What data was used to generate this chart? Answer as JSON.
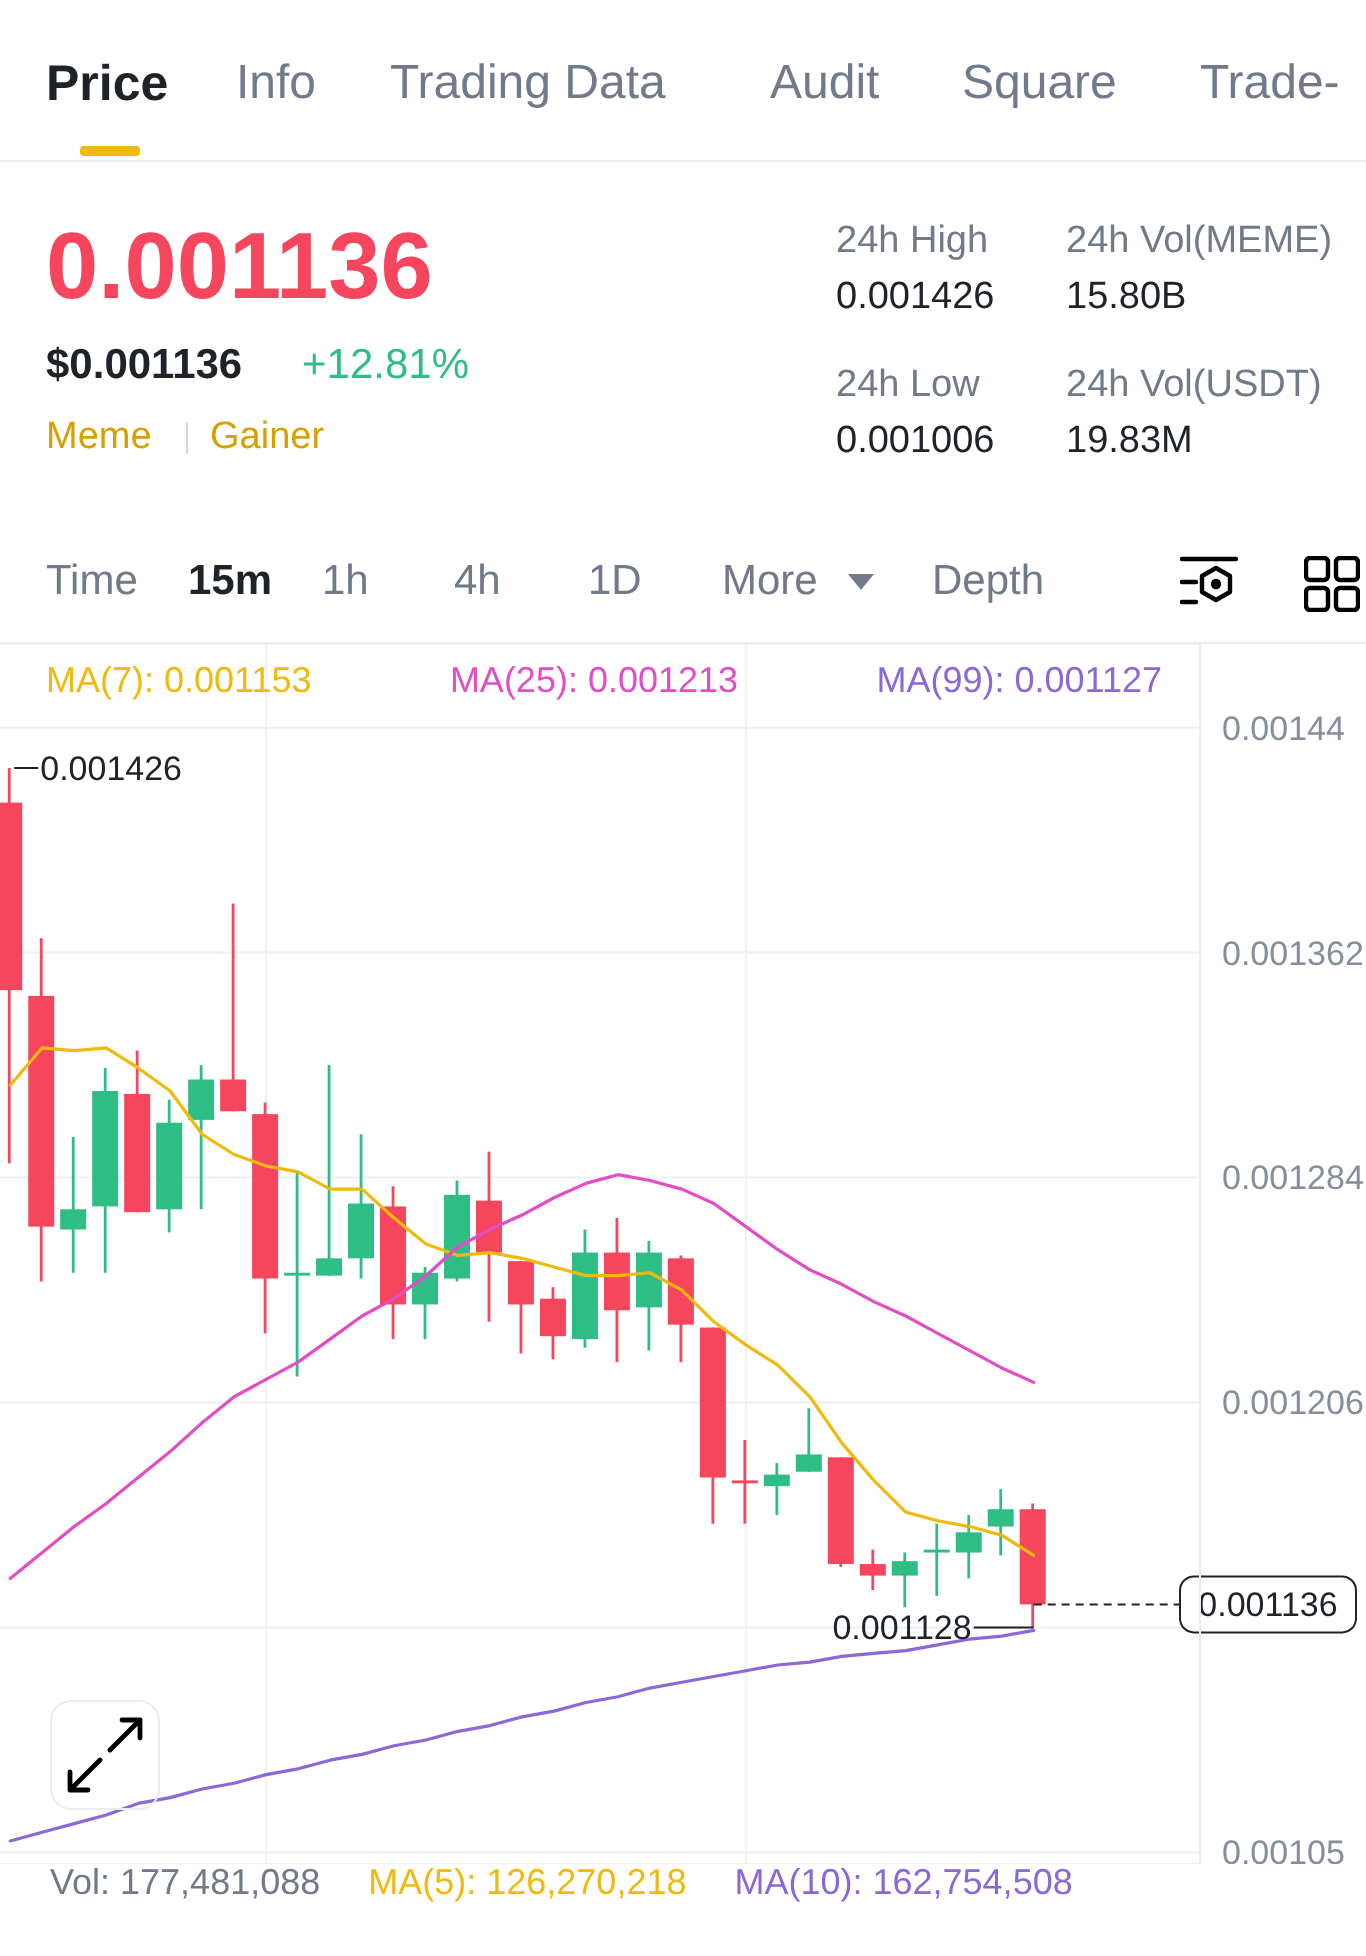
{
  "chart_data": [
    {
      "type": "other",
      "annotations": [
        "Price",
        "Info",
        "Trading Data",
        "Audit",
        "Square",
        "Trade-",
        "0.001136",
        "$0.001136",
        "+12.81%",
        "Meme",
        "Gainer",
        "24h High",
        "0.001426",
        "24h Vol(MEME)",
        "15.80B",
        "24h Low",
        "0.001006",
        "24h Vol(USDT)",
        "19.83M",
        "Time",
        "15m",
        "1h",
        "4h",
        "1D",
        "More",
        "Depth"
      ]
    },
    {
      "type": "candlestick",
      "categories": [
        null,
        null,
        null,
        null,
        null,
        null,
        null,
        null,
        null,
        null,
        null,
        null,
        null,
        null,
        null,
        null,
        null,
        null,
        null,
        null,
        null,
        null,
        null,
        null,
        null,
        null,
        null,
        null,
        null,
        null,
        null,
        null,
        null
      ],
      "ohlc": [
        [
          0.001414,
          0.001426,
          0.001289,
          0.001349
        ],
        [
          0.001347,
          0.001367,
          0.001248,
          0.001267
        ],
        [
          0.001266,
          0.001298,
          0.001251,
          0.001273
        ],
        [
          0.001274,
          0.001322,
          0.001251,
          0.001314
        ],
        [
          0.001313,
          0.001328,
          0.001272,
          0.001272
        ],
        [
          0.001273,
          0.001311,
          0.001265,
          0.001303
        ],
        [
          0.001304,
          0.001323,
          0.001273,
          0.001318
        ],
        [
          0.001318,
          0.001379,
          0.001307,
          0.001307
        ],
        [
          0.001306,
          0.00131,
          0.00123,
          0.001249
        ],
        [
          0.00125,
          0.001286,
          0.001215,
          0.001251
        ],
        [
          0.00125,
          0.001323,
          0.00125,
          0.001256
        ],
        [
          0.001256,
          0.001299,
          0.001249,
          0.001275
        ],
        [
          0.001274,
          0.001281,
          0.001228,
          0.00124
        ],
        [
          0.00124,
          0.001253,
          0.001228,
          0.001251
        ],
        [
          0.001249,
          0.001283,
          0.001248,
          0.001278
        ],
        [
          0.001276,
          0.001293,
          0.001234,
          0.001258
        ],
        [
          0.001255,
          0.001255,
          0.001223,
          0.00124
        ],
        [
          0.001242,
          0.001246,
          0.001221,
          0.001229
        ],
        [
          0.001228,
          0.001266,
          0.001225,
          0.001258
        ],
        [
          0.001258,
          0.00127,
          0.00122,
          0.001238
        ],
        [
          0.001239,
          0.001262,
          0.001224,
          0.001258
        ],
        [
          0.001256,
          0.001257,
          0.00122,
          0.001233
        ],
        [
          0.001232,
          0.001232,
          0.001164,
          0.00118
        ],
        [
          0.001179,
          0.001193,
          0.001164,
          0.001178
        ],
        [
          0.001177,
          0.001185,
          0.001167,
          0.001181
        ],
        [
          0.001182,
          0.001204,
          0.001182,
          0.001188
        ],
        [
          0.001187,
          0.001187,
          0.001149,
          0.00115
        ],
        [
          0.00115,
          0.001155,
          0.001141,
          0.001146
        ],
        [
          0.001146,
          0.001154,
          0.001135,
          0.001151
        ],
        [
          0.001154,
          0.001164,
          0.001139,
          0.001155
        ],
        [
          0.001154,
          0.001167,
          0.001145,
          0.001161
        ],
        [
          0.001163,
          0.001176,
          0.001153,
          0.001169
        ],
        [
          0.001169,
          0.001171,
          0.001128,
          0.001136
        ]
      ],
      "colors": [
        "#f6465d",
        "#f6465d",
        "#2ebd85",
        "#2ebd85",
        "#f6465d",
        "#2ebd85",
        "#2ebd85",
        "#f6465d",
        "#f6465d",
        "#2ebd85",
        "#2ebd85",
        "#2ebd85",
        "#f6465d",
        "#2ebd85",
        "#2ebd85",
        "#f6465d",
        "#f6465d",
        "#f6465d",
        "#2ebd85",
        "#f6465d",
        "#2ebd85",
        "#f6465d",
        "#f6465d",
        "#f6465d",
        "#2ebd85",
        "#2ebd85",
        "#f6465d",
        "#f6465d",
        "#2ebd85",
        "#2ebd85",
        "#2ebd85",
        "#2ebd85",
        "#f6465d"
      ],
      "series": [
        {
          "name": "MA(7): 0.001153",
          "type": "line",
          "color": "#f0b90b",
          "values": [
            0.001316,
            0.001329,
            0.001328,
            0.001329,
            0.001322,
            0.001314,
            0.001299,
            0.001292,
            0.001288,
            0.001286,
            0.00128,
            0.00128,
            0.00127,
            0.001261,
            0.001257,
            0.001258,
            0.001256,
            0.001253,
            0.00125,
            0.00125,
            0.001251,
            0.001245,
            0.001234,
            0.001226,
            0.001219,
            0.001208,
            0.001192,
            0.001179,
            0.001168,
            0.001165,
            0.001163,
            0.00116,
            0.001153
          ]
        },
        {
          "name": "MA(25): 0.001213",
          "type": "line",
          "color": "#e24cc4",
          "values": [
            0.001145,
            0.001154,
            0.001163,
            0.001171,
            0.00118,
            0.001189,
            0.001199,
            0.001208,
            0.001214,
            0.00122,
            0.001228,
            0.001236,
            0.001242,
            0.00125,
            0.00126,
            0.001266,
            0.001271,
            0.001277,
            0.001282,
            0.001285,
            0.001283,
            0.00128,
            0.001275,
            0.001267,
            0.001259,
            0.001252,
            0.001247,
            0.001241,
            0.001236,
            0.00123,
            0.001224,
            0.001218,
            0.001213
          ]
        },
        {
          "name": "MA(99): 0.001127",
          "type": "line",
          "color": "#8b68d6",
          "values": [
            0.001054,
            0.001057,
            0.00106,
            0.001063,
            0.001067,
            0.001069,
            0.001072,
            0.001074,
            0.001077,
            0.001079,
            0.001082,
            0.001084,
            0.001087,
            0.001089,
            0.001092,
            0.001094,
            0.001097,
            0.001099,
            0.001102,
            0.001104,
            0.001107,
            0.001109,
            0.001111,
            0.001113,
            0.001115,
            0.001116,
            0.001118,
            0.001119,
            0.00112,
            0.001122,
            0.001124,
            0.001125,
            0.001127
          ]
        }
      ],
      "ylim": [
        0.001046,
        0.001469
      ],
      "yticks": [
        0.00105,
        {
          "value": 0.001128,
          "label": null
        },
        0.001206,
        0.001284,
        0.001362,
        0.00144
      ],
      "grid": "y",
      "legend": "top",
      "tick_labels": "y",
      "ref_lines": [
        {
          "axis": "y",
          "value": 0.001136,
          "label": "0.001136",
          "line_style": "dashed"
        }
      ],
      "annotations": [
        "0.001426",
        "0.001128",
        "Vol: 177,481,088",
        "MA(5): 126,270,218",
        "MA(10): 162,754,508"
      ]
    }
  ]
}
